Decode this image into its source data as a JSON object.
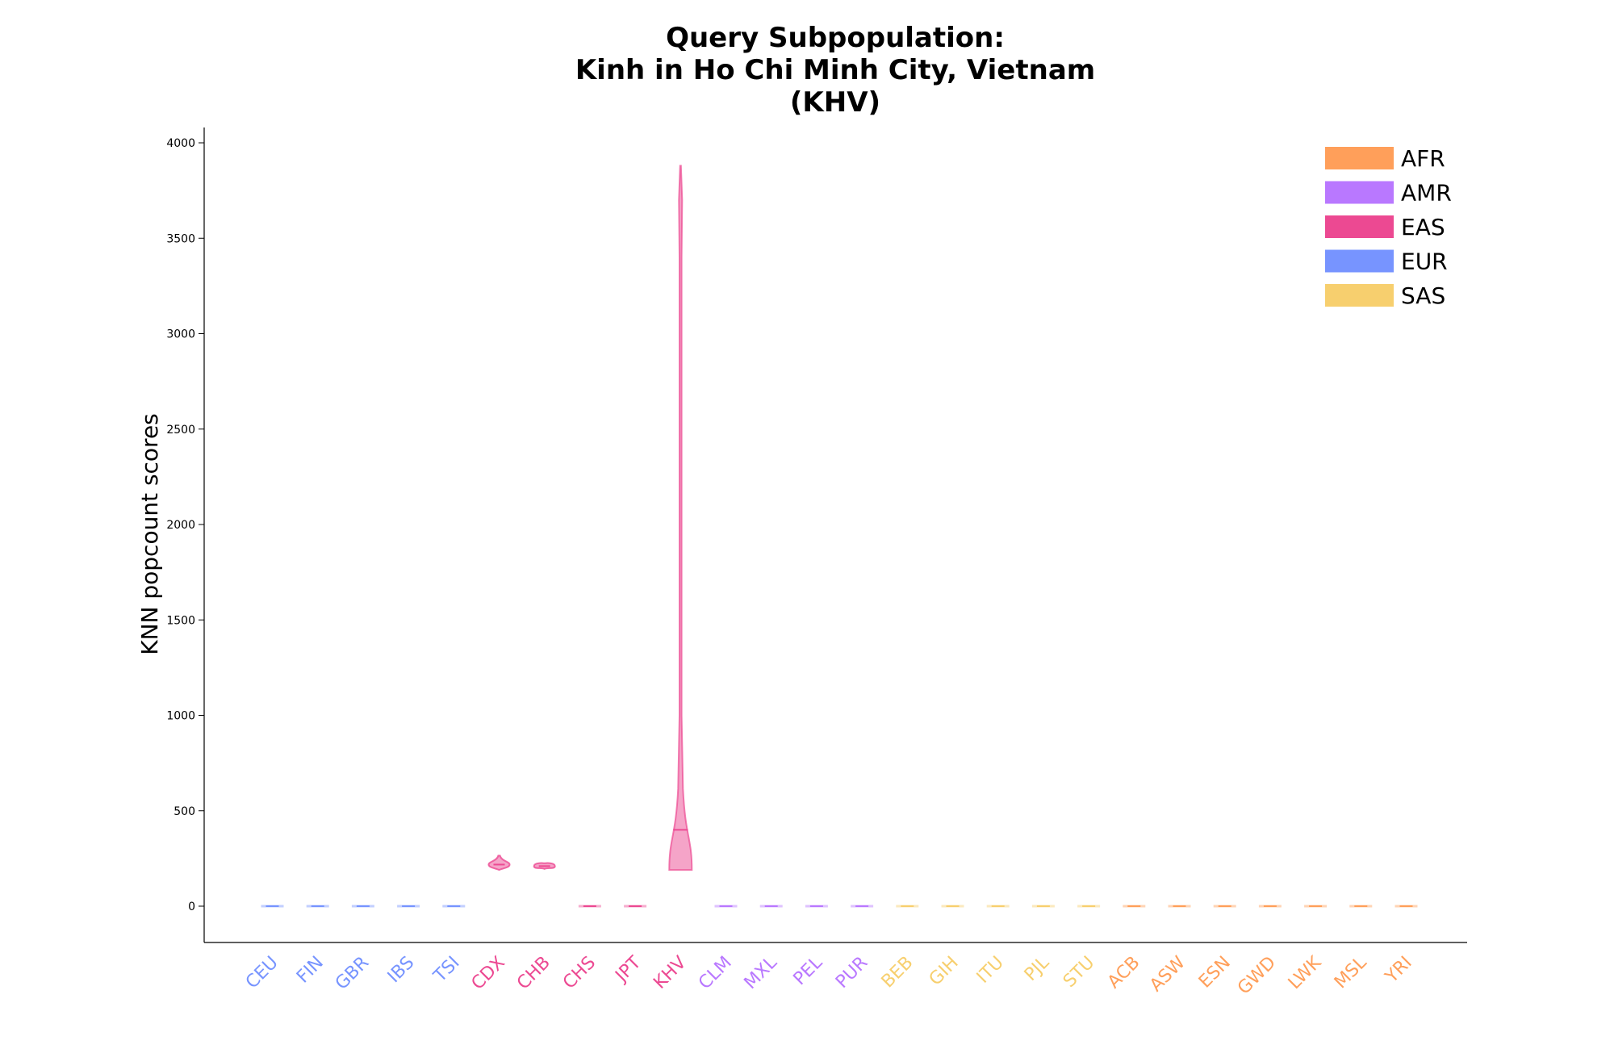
{
  "chart_data": {
    "type": "violin",
    "title": [
      "Query Subpopulation:",
      "Kinh in Ho Chi Minh City, Vietnam",
      "(KHV)"
    ],
    "ylabel": "KNN popcount scores",
    "xlabel": "",
    "ylim": [
      -190,
      4070
    ],
    "yticks": [
      0,
      500,
      1000,
      1500,
      2000,
      2500,
      3000,
      3500,
      4000
    ],
    "legend": {
      "placement": "top-right",
      "entries": [
        {
          "label": "AFR",
          "color": "#FF9F5A"
        },
        {
          "label": "AMR",
          "color": "#B978FF"
        },
        {
          "label": "EAS",
          "color": "#EC4992"
        },
        {
          "label": "EUR",
          "color": "#7794FF"
        },
        {
          "label": "SAS",
          "color": "#F7CF6E"
        }
      ]
    },
    "categories": [
      {
        "name": "CEU",
        "group": "EUR",
        "min": 0,
        "max": 0,
        "median": 0
      },
      {
        "name": "FIN",
        "group": "EUR",
        "min": 0,
        "max": 0,
        "median": 0
      },
      {
        "name": "GBR",
        "group": "EUR",
        "min": 0,
        "max": 0,
        "median": 0
      },
      {
        "name": "IBS",
        "group": "EUR",
        "min": 0,
        "max": 0,
        "median": 0
      },
      {
        "name": "TSI",
        "group": "EUR",
        "min": 0,
        "max": 0,
        "median": 0
      },
      {
        "name": "CDX",
        "group": "EAS",
        "min": 190,
        "max": 265,
        "median": 218
      },
      {
        "name": "CHB",
        "group": "EAS",
        "min": 195,
        "max": 225,
        "median": 210
      },
      {
        "name": "CHS",
        "group": "EAS",
        "min": 0,
        "max": 0,
        "median": 0
      },
      {
        "name": "JPT",
        "group": "EAS",
        "min": 0,
        "max": 0,
        "median": 0
      },
      {
        "name": "KHV",
        "group": "EAS",
        "min": 190,
        "max": 3880,
        "median": 400
      },
      {
        "name": "CLM",
        "group": "AMR",
        "min": 0,
        "max": 0,
        "median": 0
      },
      {
        "name": "MXL",
        "group": "AMR",
        "min": 0,
        "max": 0,
        "median": 0
      },
      {
        "name": "PEL",
        "group": "AMR",
        "min": 0,
        "max": 0,
        "median": 0
      },
      {
        "name": "PUR",
        "group": "AMR",
        "min": 0,
        "max": 0,
        "median": 0
      },
      {
        "name": "BEB",
        "group": "SAS",
        "min": 0,
        "max": 0,
        "median": 0
      },
      {
        "name": "GIH",
        "group": "SAS",
        "min": 0,
        "max": 0,
        "median": 0
      },
      {
        "name": "ITU",
        "group": "SAS",
        "min": 0,
        "max": 0,
        "median": 0
      },
      {
        "name": "PJL",
        "group": "SAS",
        "min": 0,
        "max": 0,
        "median": 0
      },
      {
        "name": "STU",
        "group": "SAS",
        "min": 0,
        "max": 0,
        "median": 0
      },
      {
        "name": "ACB",
        "group": "AFR",
        "min": 0,
        "max": 0,
        "median": 0
      },
      {
        "name": "ASW",
        "group": "AFR",
        "min": 0,
        "max": 0,
        "median": 0
      },
      {
        "name": "ESN",
        "group": "AFR",
        "min": 0,
        "max": 0,
        "median": 0
      },
      {
        "name": "GWD",
        "group": "AFR",
        "min": 0,
        "max": 0,
        "median": 0
      },
      {
        "name": "LWK",
        "group": "AFR",
        "min": 0,
        "max": 0,
        "median": 0
      },
      {
        "name": "MSL",
        "group": "AFR",
        "min": 0,
        "max": 0,
        "median": 0
      },
      {
        "name": "YRI",
        "group": "AFR",
        "min": 0,
        "max": 0,
        "median": 0
      }
    ]
  }
}
